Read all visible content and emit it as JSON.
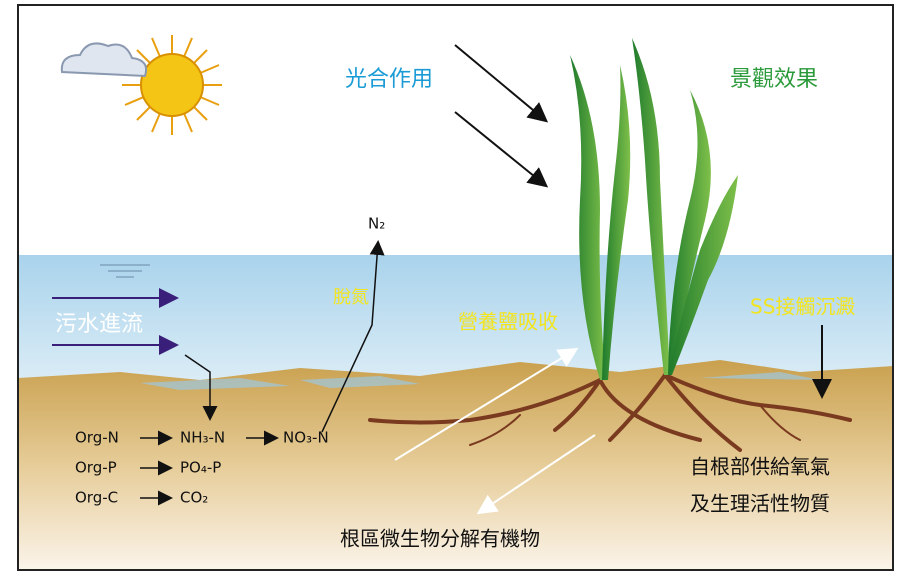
{
  "labels": {
    "photosynthesis": "光合作用",
    "landscape": "景觀效果",
    "nitrogen_gas": "N₂",
    "denitrification": "脫氮",
    "inflow": "污水進流",
    "nutrient_uptake": "營養鹽吸收",
    "ss_settling": "SS接觸沉澱",
    "root_supply_1": "自根部供給氧氣",
    "root_supply_2": "及生理活性物質",
    "microbes": "根區微生物分解有機物"
  },
  "reactions": [
    [
      "Org-N",
      "NH₃-N",
      "NO₃-N"
    ],
    [
      "Org-P",
      "PO₄-P"
    ],
    [
      "Org-C",
      "CO₂"
    ]
  ]
}
